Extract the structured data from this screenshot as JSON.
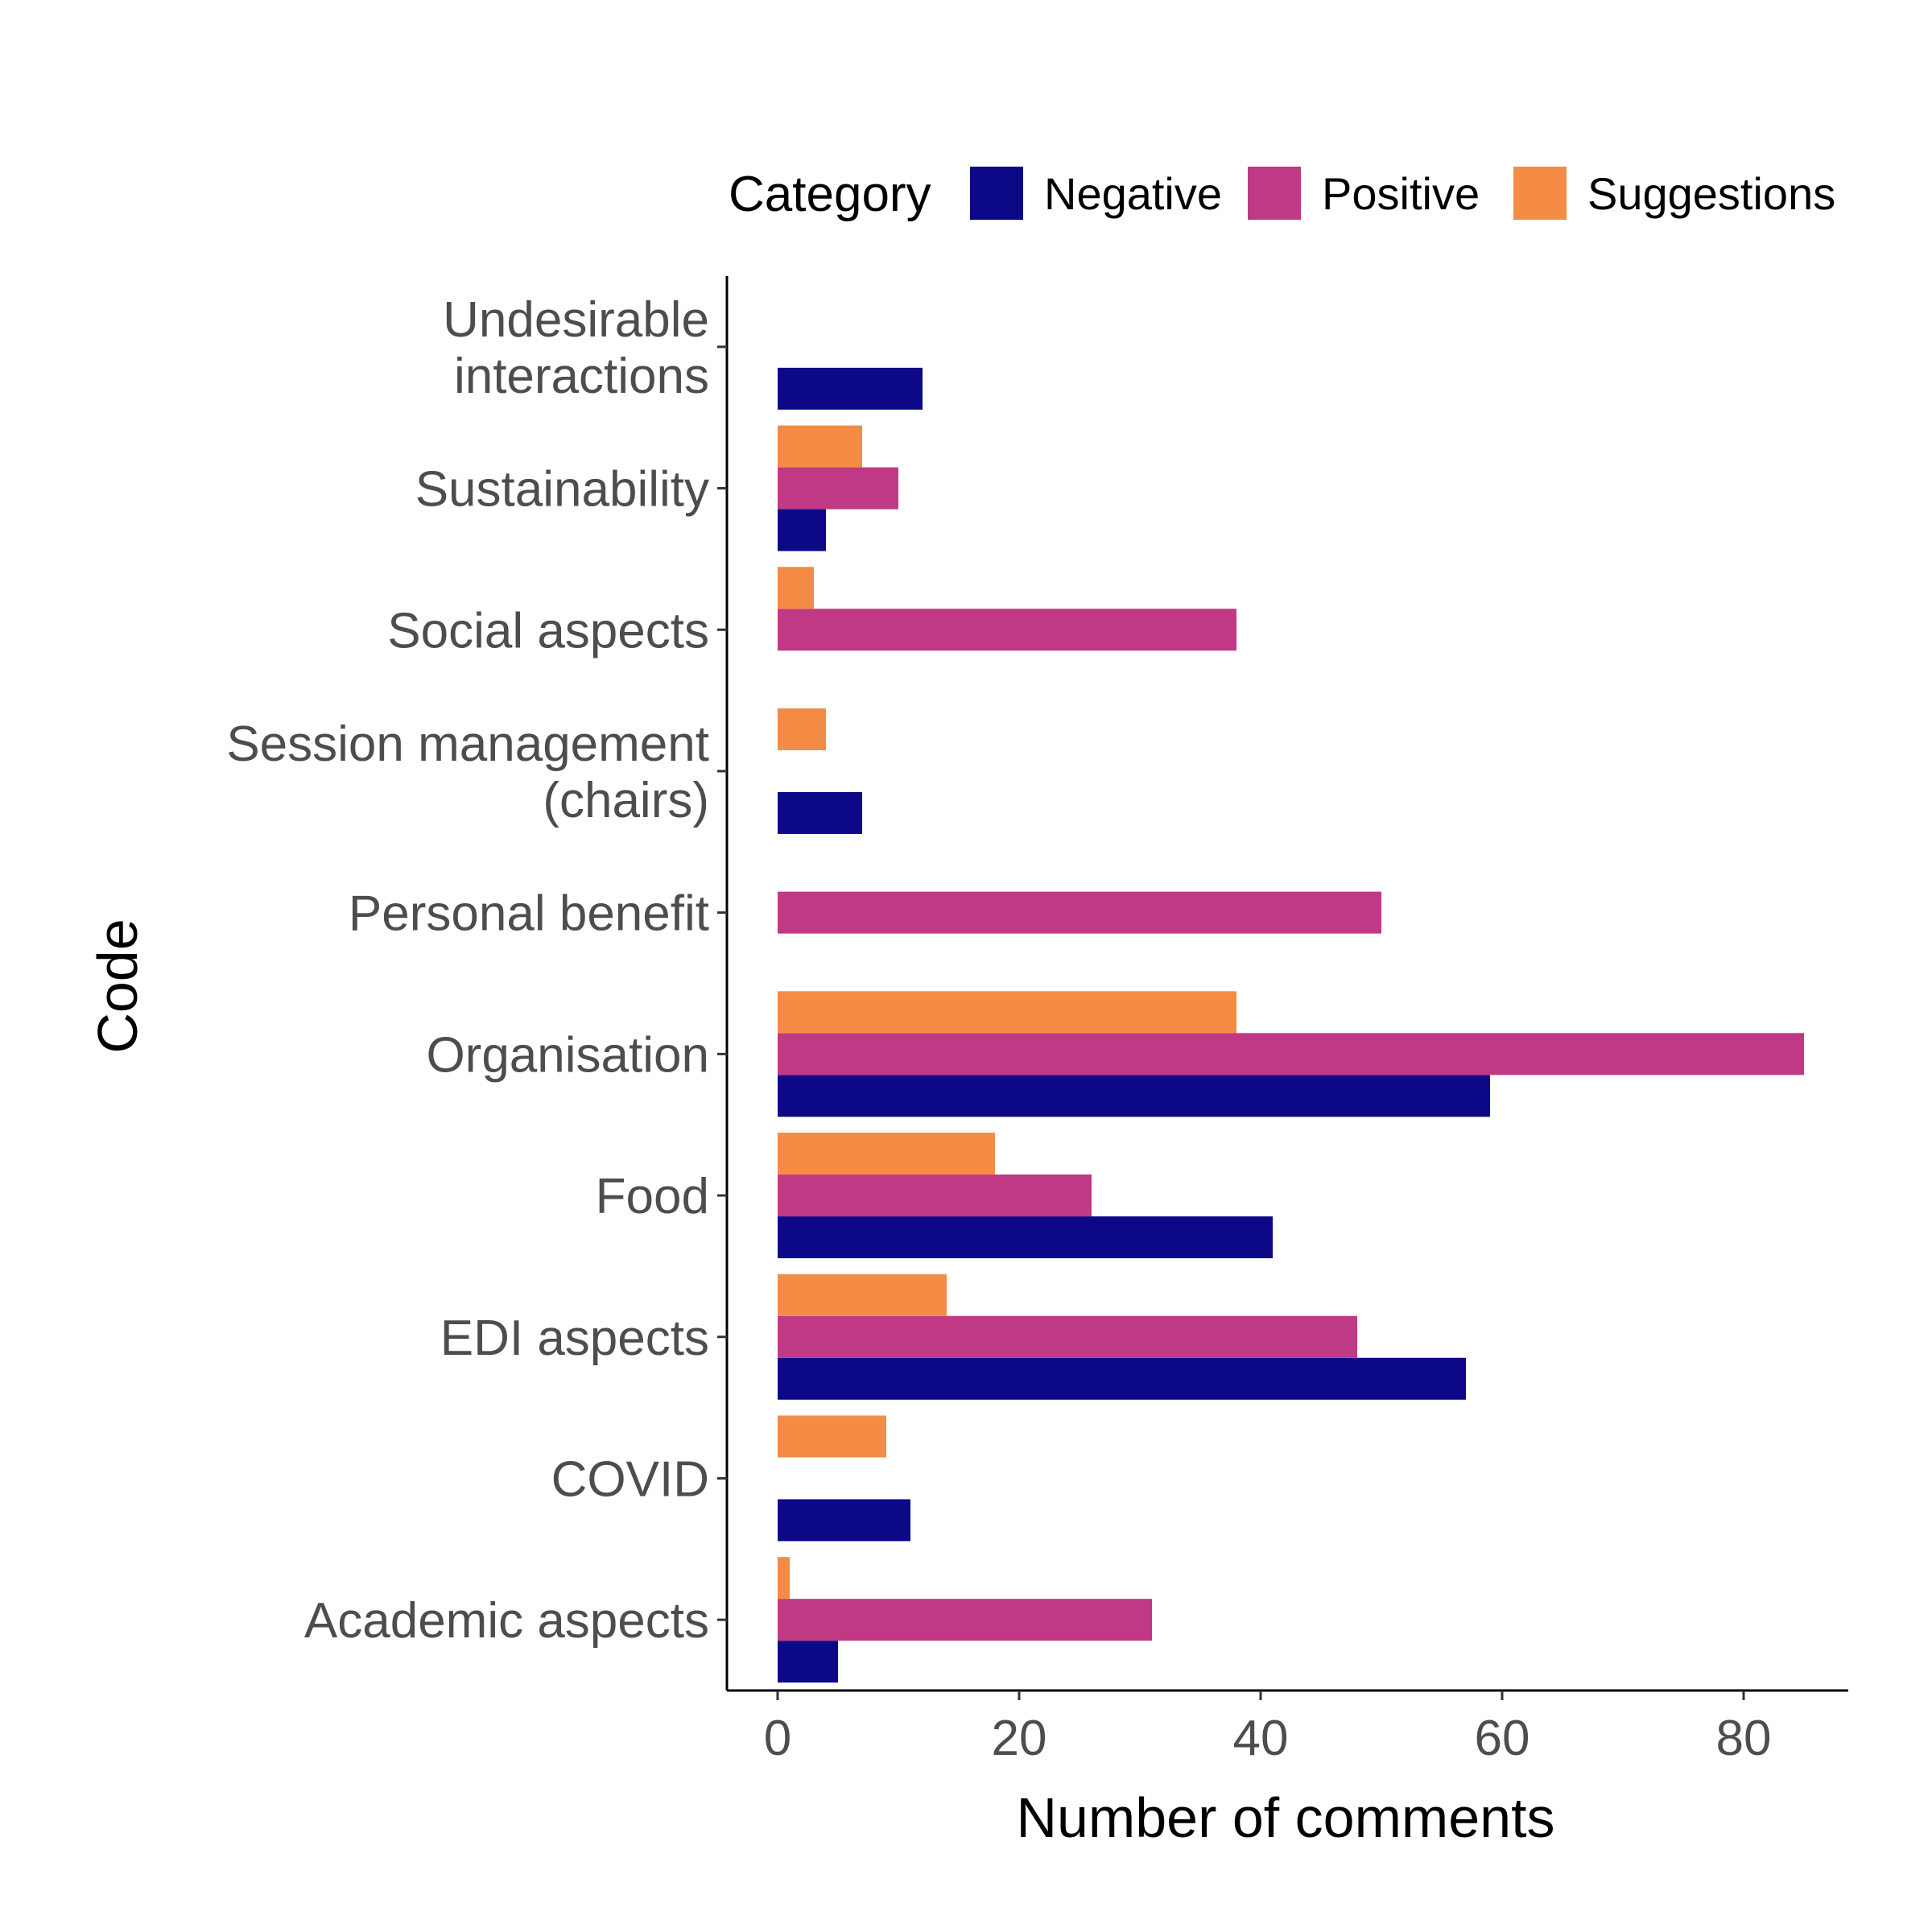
{
  "chart_data": {
    "type": "bar",
    "orientation": "horizontal",
    "xlabel": "Number of comments",
    "ylabel": "Code",
    "xlim": [
      -4.3,
      89
    ],
    "xticks": [
      0,
      20,
      40,
      60,
      80
    ],
    "legend": {
      "title": "Category",
      "position": "top",
      "entries": [
        "Negative",
        "Positive",
        "Suggestions"
      ]
    },
    "colors": {
      "Negative": "#0d0887",
      "Positive": "#bf3984",
      "Suggestions": "#f48c45"
    },
    "categories": [
      [
        "Undesirable",
        "interactions"
      ],
      [
        "Sustainability"
      ],
      [
        "Social aspects"
      ],
      [
        "Session management",
        "(chairs)"
      ],
      [
        "Personal benefit"
      ],
      [
        "Organisation"
      ],
      [
        "Food"
      ],
      [
        "EDI aspects"
      ],
      [
        "COVID"
      ],
      [
        "Academic aspects"
      ]
    ],
    "series": [
      {
        "name": "Negative",
        "values": [
          12,
          4,
          0,
          7,
          0,
          59,
          41,
          57,
          11,
          5
        ]
      },
      {
        "name": "Positive",
        "values": [
          0,
          10,
          38,
          0,
          50,
          85,
          26,
          48,
          0,
          31
        ]
      },
      {
        "name": "Suggestions",
        "values": [
          0,
          7,
          3,
          4,
          0,
          38,
          18,
          14,
          9,
          1
        ]
      }
    ],
    "grid": false
  }
}
